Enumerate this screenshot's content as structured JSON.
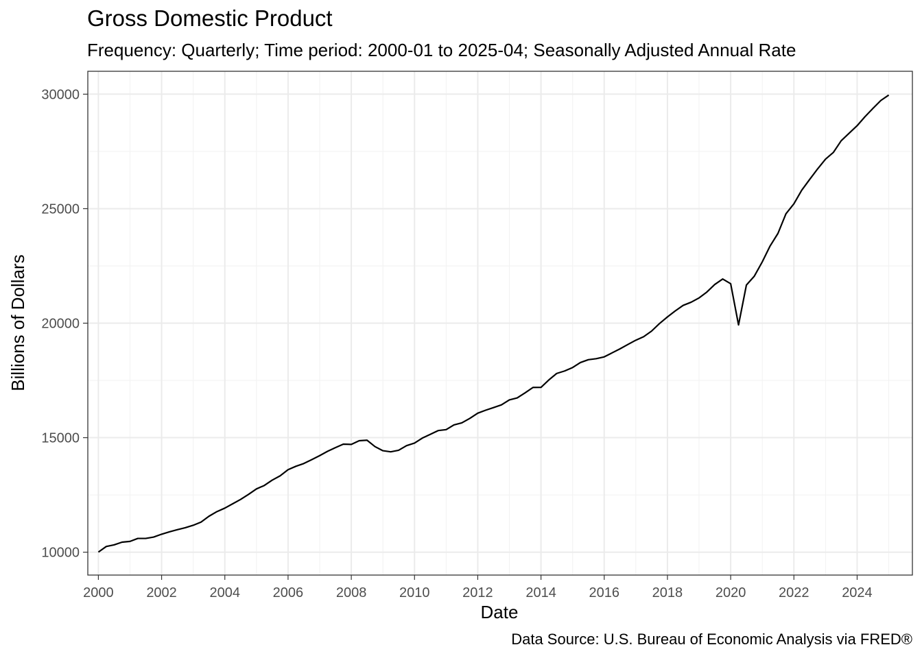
{
  "chart_data": {
    "type": "line",
    "title": "Gross Domestic Product",
    "subtitle": "Frequency: Quarterly; Time period: 2000-01 to 2025-04; Seasonally Adjusted Annual Rate",
    "xlabel": "Date",
    "ylabel": "Billions of Dollars",
    "caption": "Data Source: U.S. Bureau of Economic Analysis via FRED®",
    "xlim": [
      "1999-09-01",
      "2025-10-01"
    ],
    "ylim": [
      9000,
      31000
    ],
    "grid": true,
    "legend": "none",
    "line_color": "#000000",
    "x_ticks": [
      "2000",
      "2002",
      "2004",
      "2006",
      "2008",
      "2010",
      "2012",
      "2014",
      "2016",
      "2018",
      "2020",
      "2022",
      "2024"
    ],
    "y_ticks": [
      10000,
      15000,
      20000,
      25000,
      30000
    ],
    "y_tick_labels": [
      "10000",
      "15000",
      "20000",
      "25000",
      "30000"
    ],
    "x": [
      "2000-01-01",
      "2000-04-01",
      "2000-07-01",
      "2000-10-01",
      "2001-01-01",
      "2001-04-01",
      "2001-07-01",
      "2001-10-01",
      "2002-01-01",
      "2002-04-01",
      "2002-07-01",
      "2002-10-01",
      "2003-01-01",
      "2003-04-01",
      "2003-07-01",
      "2003-10-01",
      "2004-01-01",
      "2004-04-01",
      "2004-07-01",
      "2004-10-01",
      "2005-01-01",
      "2005-04-01",
      "2005-07-01",
      "2005-10-01",
      "2006-01-01",
      "2006-04-01",
      "2006-07-01",
      "2006-10-01",
      "2007-01-01",
      "2007-04-01",
      "2007-07-01",
      "2007-10-01",
      "2008-01-01",
      "2008-04-01",
      "2008-07-01",
      "2008-10-01",
      "2009-01-01",
      "2009-04-01",
      "2009-07-01",
      "2009-10-01",
      "2010-01-01",
      "2010-04-01",
      "2010-07-01",
      "2010-10-01",
      "2011-01-01",
      "2011-04-01",
      "2011-07-01",
      "2011-10-01",
      "2012-01-01",
      "2012-04-01",
      "2012-07-01",
      "2012-10-01",
      "2013-01-01",
      "2013-04-01",
      "2013-07-01",
      "2013-10-01",
      "2014-01-01",
      "2014-04-01",
      "2014-07-01",
      "2014-10-01",
      "2015-01-01",
      "2015-04-01",
      "2015-07-01",
      "2015-10-01",
      "2016-01-01",
      "2016-04-01",
      "2016-07-01",
      "2016-10-01",
      "2017-01-01",
      "2017-04-01",
      "2017-07-01",
      "2017-10-01",
      "2018-01-01",
      "2018-04-01",
      "2018-07-01",
      "2018-10-01",
      "2019-01-01",
      "2019-04-01",
      "2019-07-01",
      "2019-10-01",
      "2020-01-01",
      "2020-04-01",
      "2020-07-01",
      "2020-10-01",
      "2021-01-01",
      "2021-04-01",
      "2021-07-01",
      "2021-10-01",
      "2022-01-01",
      "2022-04-01",
      "2022-07-01",
      "2022-10-01",
      "2023-01-01",
      "2023-04-01",
      "2023-07-01",
      "2023-10-01",
      "2024-01-01",
      "2024-04-01",
      "2024-07-01",
      "2024-10-01",
      "2025-01-01"
    ],
    "series": [
      {
        "values": [
          10002,
          10248,
          10318,
          10436,
          10470,
          10600,
          10599,
          10660,
          10784,
          10887,
          10982,
          11067,
          11175,
          11312,
          11567,
          11770,
          11924,
          12113,
          12303,
          12522,
          12762,
          12911,
          13143,
          13332,
          13603,
          13750,
          13870,
          14040,
          14216,
          14402,
          14564,
          14716,
          14706,
          14866,
          14889,
          14610,
          14430,
          14382,
          14450,
          14651,
          14764,
          14981,
          15143,
          15309,
          15351,
          15558,
          15648,
          15842,
          16069,
          16199,
          16314,
          16432,
          16651,
          16734,
          16957,
          17194,
          17197,
          17519,
          17804,
          17912,
          18063,
          18280,
          18405,
          18449,
          18529,
          18703,
          18877,
          19071,
          19257,
          19408,
          19652,
          19983,
          20273,
          20536,
          20776,
          20915,
          21102,
          21359,
          21690,
          21929,
          21724,
          19924,
          21665,
          22055,
          22679,
          23370,
          23921,
          24777,
          25214,
          25805,
          26272,
          26734,
          27164,
          27454,
          27968,
          28297,
          28625,
          29017,
          29375,
          29724,
          29962
        ]
      }
    ]
  }
}
